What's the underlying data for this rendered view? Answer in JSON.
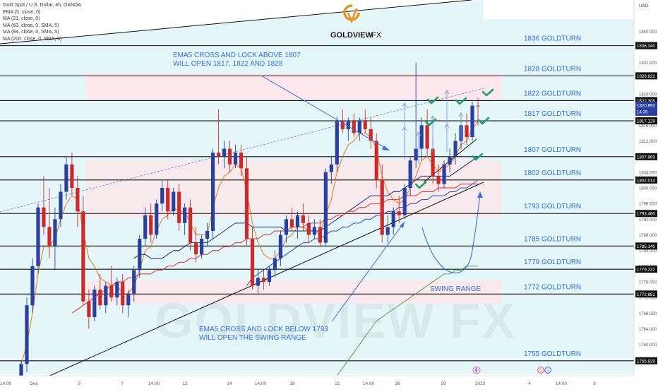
{
  "legend": {
    "symbol_title": "Gold Spot / U.S. Dollar, 4h, OANDA",
    "indicators": [
      "EMA (5, close, 0)",
      "MA (21, close, 0)",
      "MA (63, close, 0, SMA, 5)",
      "MA (84, close, 0, SMA, 5)",
      "MA (200, close, 0, SMA, 5)"
    ]
  },
  "brand": {
    "name": "GOLDVIEW",
    "suffix": "FX",
    "watermark": "GOLDVIEW FX"
  },
  "currency": "USD",
  "colors": {
    "up": "#2a3f9e",
    "down": "#cc2a2a",
    "ema5": "#e8761a",
    "ma21": "#1d2b6e",
    "ma63": "#d62f2f",
    "ma84": "#2b44c2",
    "ma200": "#4f9a3a",
    "label_blue": "#2e6fd6",
    "check_green": "#1e9e6a",
    "channel_fill": "#e3f6f8",
    "zone_fill": "#fde6ea",
    "brand_orange": "#e89420"
  },
  "annotations": {
    "top_note": [
      "EMA5 CROSS AND LOCK ABOVE 1807",
      "WILL OPEN 1817, 1822 AND 1828"
    ],
    "bottom_note": [
      "EMA5 CROSS AND LOCK BELOW 1793",
      "WILL OPEN THE SWING RANGE"
    ],
    "swing_range": "SWING RANGE"
  },
  "chart_data": {
    "type": "candlestick",
    "symbol": "Gold Spot / U.S. Dollar",
    "timeframe": "4h",
    "source": "OANDA",
    "ylim": [
      1752,
      1848
    ],
    "y_ticks": [
      1756,
      1760,
      1764,
      1768,
      1772,
      1776,
      1780,
      1784,
      1788,
      1792,
      1796,
      1800,
      1804,
      1808,
      1812,
      1816,
      1824,
      1832,
      1840
    ],
    "x_tick_labels": [
      "14:00",
      "Dec",
      "5",
      "7",
      "14:00",
      "12",
      "14",
      "14:00",
      "19",
      "21",
      "14:00",
      "26",
      "29",
      "2023",
      "4",
      "14:00",
      "9"
    ],
    "goldturn_levels": [
      {
        "label": "1836 GOLDTURN",
        "price": 1836.34
      },
      {
        "label": "1828 GOLDTURN",
        "price": 1828.622
      },
      {
        "label": "1822 GOLDTURN",
        "price": 1822.306
      },
      {
        "label": "1817 GOLDTURN",
        "price": 1817.129
      },
      {
        "label": "1807 GOLDTURN",
        "price": 1807.969
      },
      {
        "label": "1802 GOLDTURN",
        "price": 1802.014
      },
      {
        "label": "1793 GOLDTURN",
        "price": 1793.46
      },
      {
        "label": "1785 GOLDTURN",
        "price": 1785.14
      },
      {
        "label": "1779 GOLDTURN",
        "price": 1779.222
      },
      {
        "label": "1772 GOLDTURN",
        "price": 1772.881
      },
      {
        "label": "1755 GOLDTURN",
        "price": 1755.829
      }
    ],
    "axis_price_labels": [
      "1836.340",
      "1828.622",
      "1822.306",
      "1817.129",
      "1807.969",
      "1802.014",
      "1793.460",
      "1785.140",
      "1779.222",
      "1772.881",
      "1755.829"
    ],
    "current_price": {
      "price": 1820.95,
      "label": "1820.950",
      "countdown": "14:39"
    },
    "candles": [
      {
        "o": 1752,
        "h": 1756,
        "l": 1751,
        "c": 1755
      },
      {
        "o": 1755,
        "h": 1772,
        "l": 1753,
        "c": 1770
      },
      {
        "o": 1770,
        "h": 1782,
        "l": 1768,
        "c": 1780
      },
      {
        "o": 1780,
        "h": 1796,
        "l": 1778,
        "c": 1795
      },
      {
        "o": 1795,
        "h": 1803,
        "l": 1788,
        "c": 1790
      },
      {
        "o": 1790,
        "h": 1800,
        "l": 1782,
        "c": 1785
      },
      {
        "o": 1785,
        "h": 1795,
        "l": 1779,
        "c": 1792
      },
      {
        "o": 1792,
        "h": 1801,
        "l": 1790,
        "c": 1799
      },
      {
        "o": 1799,
        "h": 1808,
        "l": 1797,
        "c": 1806
      },
      {
        "o": 1806,
        "h": 1809,
        "l": 1798,
        "c": 1800
      },
      {
        "o": 1800,
        "h": 1803,
        "l": 1790,
        "c": 1794
      },
      {
        "o": 1794,
        "h": 1798,
        "l": 1770,
        "c": 1771
      },
      {
        "o": 1771,
        "h": 1774,
        "l": 1764,
        "c": 1767
      },
      {
        "o": 1767,
        "h": 1775,
        "l": 1766,
        "c": 1774
      },
      {
        "o": 1774,
        "h": 1778,
        "l": 1769,
        "c": 1770
      },
      {
        "o": 1770,
        "h": 1776,
        "l": 1768,
        "c": 1775
      },
      {
        "o": 1775,
        "h": 1780,
        "l": 1771,
        "c": 1772
      },
      {
        "o": 1772,
        "h": 1777,
        "l": 1770,
        "c": 1776
      },
      {
        "o": 1776,
        "h": 1778,
        "l": 1768,
        "c": 1770
      },
      {
        "o": 1770,
        "h": 1774,
        "l": 1767,
        "c": 1773
      },
      {
        "o": 1773,
        "h": 1780,
        "l": 1771,
        "c": 1779
      },
      {
        "o": 1779,
        "h": 1788,
        "l": 1777,
        "c": 1787
      },
      {
        "o": 1787,
        "h": 1795,
        "l": 1785,
        "c": 1793
      },
      {
        "o": 1793,
        "h": 1796,
        "l": 1786,
        "c": 1788
      },
      {
        "o": 1788,
        "h": 1797,
        "l": 1787,
        "c": 1796
      },
      {
        "o": 1796,
        "h": 1802,
        "l": 1794,
        "c": 1800
      },
      {
        "o": 1800,
        "h": 1802,
        "l": 1792,
        "c": 1794
      },
      {
        "o": 1794,
        "h": 1800,
        "l": 1793,
        "c": 1799
      },
      {
        "o": 1799,
        "h": 1801,
        "l": 1789,
        "c": 1791
      },
      {
        "o": 1791,
        "h": 1796,
        "l": 1788,
        "c": 1795
      },
      {
        "o": 1795,
        "h": 1797,
        "l": 1784,
        "c": 1786
      },
      {
        "o": 1786,
        "h": 1790,
        "l": 1781,
        "c": 1783
      },
      {
        "o": 1783,
        "h": 1788,
        "l": 1782,
        "c": 1787
      },
      {
        "o": 1787,
        "h": 1791,
        "l": 1785,
        "c": 1789
      },
      {
        "o": 1789,
        "h": 1810,
        "l": 1787,
        "c": 1809
      },
      {
        "o": 1809,
        "h": 1820,
        "l": 1806,
        "c": 1808
      },
      {
        "o": 1808,
        "h": 1812,
        "l": 1805,
        "c": 1810
      },
      {
        "o": 1810,
        "h": 1812,
        "l": 1804,
        "c": 1806
      },
      {
        "o": 1806,
        "h": 1811,
        "l": 1805,
        "c": 1809
      },
      {
        "o": 1809,
        "h": 1811,
        "l": 1803,
        "c": 1805
      },
      {
        "o": 1805,
        "h": 1808,
        "l": 1785,
        "c": 1787
      },
      {
        "o": 1787,
        "h": 1790,
        "l": 1774,
        "c": 1775
      },
      {
        "o": 1775,
        "h": 1779,
        "l": 1773,
        "c": 1777
      },
      {
        "o": 1777,
        "h": 1779,
        "l": 1774,
        "c": 1776
      },
      {
        "o": 1776,
        "h": 1780,
        "l": 1775,
        "c": 1779
      },
      {
        "o": 1779,
        "h": 1784,
        "l": 1777,
        "c": 1782
      },
      {
        "o": 1782,
        "h": 1789,
        "l": 1780,
        "c": 1788
      },
      {
        "o": 1788,
        "h": 1793,
        "l": 1786,
        "c": 1792
      },
      {
        "o": 1792,
        "h": 1795,
        "l": 1789,
        "c": 1790
      },
      {
        "o": 1790,
        "h": 1794,
        "l": 1787,
        "c": 1793
      },
      {
        "o": 1793,
        "h": 1796,
        "l": 1789,
        "c": 1791
      },
      {
        "o": 1791,
        "h": 1793,
        "l": 1786,
        "c": 1788
      },
      {
        "o": 1788,
        "h": 1792,
        "l": 1787,
        "c": 1790
      },
      {
        "o": 1790,
        "h": 1792,
        "l": 1785,
        "c": 1786
      },
      {
        "o": 1786,
        "h": 1805,
        "l": 1785,
        "c": 1804
      },
      {
        "o": 1804,
        "h": 1808,
        "l": 1801,
        "c": 1806
      },
      {
        "o": 1806,
        "h": 1818,
        "l": 1804,
        "c": 1817
      },
      {
        "o": 1817,
        "h": 1820,
        "l": 1814,
        "c": 1815
      },
      {
        "o": 1815,
        "h": 1818,
        "l": 1812,
        "c": 1817
      },
      {
        "o": 1817,
        "h": 1819,
        "l": 1813,
        "c": 1814
      },
      {
        "o": 1814,
        "h": 1818,
        "l": 1812,
        "c": 1817
      },
      {
        "o": 1817,
        "h": 1820,
        "l": 1814,
        "c": 1815
      },
      {
        "o": 1815,
        "h": 1818,
        "l": 1810,
        "c": 1812
      },
      {
        "o": 1812,
        "h": 1814,
        "l": 1800,
        "c": 1802
      },
      {
        "o": 1802,
        "h": 1806,
        "l": 1786,
        "c": 1788
      },
      {
        "o": 1788,
        "h": 1793,
        "l": 1786,
        "c": 1790
      },
      {
        "o": 1790,
        "h": 1795,
        "l": 1788,
        "c": 1794
      },
      {
        "o": 1794,
        "h": 1798,
        "l": 1791,
        "c": 1793
      },
      {
        "o": 1793,
        "h": 1801,
        "l": 1792,
        "c": 1800
      },
      {
        "o": 1800,
        "h": 1808,
        "l": 1798,
        "c": 1807
      },
      {
        "o": 1807,
        "h": 1832,
        "l": 1805,
        "c": 1810
      },
      {
        "o": 1810,
        "h": 1818,
        "l": 1807,
        "c": 1816
      },
      {
        "o": 1816,
        "h": 1820,
        "l": 1808,
        "c": 1810
      },
      {
        "o": 1810,
        "h": 1813,
        "l": 1801,
        "c": 1803
      },
      {
        "o": 1803,
        "h": 1806,
        "l": 1799,
        "c": 1801
      },
      {
        "o": 1801,
        "h": 1807,
        "l": 1800,
        "c": 1806
      },
      {
        "o": 1806,
        "h": 1810,
        "l": 1804,
        "c": 1808
      },
      {
        "o": 1808,
        "h": 1814,
        "l": 1806,
        "c": 1812
      },
      {
        "o": 1812,
        "h": 1818,
        "l": 1810,
        "c": 1816
      },
      {
        "o": 1816,
        "h": 1819,
        "l": 1811,
        "c": 1813
      },
      {
        "o": 1813,
        "h": 1822,
        "l": 1812,
        "c": 1821
      },
      {
        "o": 1821,
        "h": 1823,
        "l": 1816,
        "c": 1820.95
      }
    ],
    "series": [
      {
        "name": "EMA (5, close, 0)",
        "values": [
          1755,
          1760,
          1768,
          1778,
          1785,
          1785,
          1787,
          1792,
          1796,
          1798,
          1797,
          1789,
          1782,
          1780,
          1777,
          1776,
          1775,
          1775,
          1773,
          1773,
          1775,
          1779,
          1784,
          1785,
          1789,
          1792,
          1793,
          1795,
          1794,
          1794,
          1791,
          1788,
          1788,
          1788,
          1795,
          1800,
          1803,
          1804,
          1806,
          1805,
          1799,
          1791,
          1786,
          1783,
          1782,
          1782,
          1784,
          1787,
          1788,
          1790,
          1790,
          1789,
          1789,
          1788,
          1793,
          1797,
          1804,
          1808,
          1811,
          1812,
          1814,
          1814,
          1813,
          1810,
          1803,
          1799,
          1797,
          1796,
          1797,
          1800,
          1803,
          1807,
          1808,
          1806,
          1804,
          1805,
          1806,
          1808,
          1811,
          1812,
          1815,
          1817
        ]
      },
      {
        "name": "MA (21, close, 0)",
        "values": [
          null,
          null,
          null,
          null,
          null,
          null,
          null,
          null,
          null,
          null,
          null,
          null,
          null,
          null,
          null,
          null,
          null,
          null,
          null,
          null,
          1782,
          1783,
          1783,
          1782,
          1782,
          1782,
          1783,
          1784,
          1784,
          1785,
          1786,
          1786,
          1786,
          1786,
          1787,
          1788,
          1789,
          1790,
          1791,
          1791,
          1791,
          1790,
          1790,
          1790,
          1790,
          1790,
          1790,
          1789,
          1789,
          1789,
          1789,
          1789,
          1789,
          1789,
          1790,
          1791,
          1792,
          1793,
          1794,
          1795,
          1796,
          1797,
          1798,
          1798,
          1798,
          1798,
          1799,
          1799,
          1800,
          1801,
          1802,
          1803,
          1803,
          1803,
          1803,
          1803,
          1803,
          1804,
          1805,
          1806,
          1807,
          1808
        ]
      },
      {
        "name": "MA (63, close, 0, SMA, 5)",
        "values": [
          null,
          null,
          null,
          null,
          null,
          null,
          null,
          null,
          null,
          1768,
          1769,
          1770,
          1771,
          1772,
          1773,
          1774,
          1775,
          1776,
          1776,
          1777,
          1777,
          1778,
          1778,
          1778,
          1779,
          1779,
          1780,
          1780,
          1781,
          1781,
          1782,
          1782,
          1783,
          1783,
          1784,
          1784,
          1785,
          1785,
          1786,
          1786,
          1787,
          1787,
          1787,
          1788,
          1788,
          1789,
          1789,
          1789,
          1790,
          1790,
          1790,
          1791,
          1791,
          1791,
          1792,
          1792,
          1793,
          1793,
          1794,
          1794,
          1795,
          1795,
          1796,
          1796,
          1796,
          1797,
          1797,
          1797,
          1798,
          1798,
          1798,
          1799,
          1799,
          1799,
          1800,
          1800,
          1800,
          1800,
          1801,
          1801,
          1801,
          1802
        ]
      },
      {
        "name": "MA (84, close, 0, SMA, 5)",
        "values": [
          null,
          null,
          null,
          null,
          null,
          null,
          null,
          null,
          null,
          null,
          null,
          null,
          null,
          null,
          null,
          null,
          null,
          null,
          null,
          null,
          null,
          null,
          null,
          null,
          null,
          null,
          null,
          null,
          null,
          null,
          null,
          null,
          null,
          null,
          null,
          null,
          null,
          null,
          null,
          null,
          1775,
          1777,
          1778,
          1779,
          1780,
          1781,
          1782,
          1783,
          1784,
          1785,
          1786,
          1786,
          1787,
          1787,
          1788,
          1789,
          1789,
          1790,
          1790,
          1791,
          1791,
          1792,
          1792,
          1793,
          1793,
          1794,
          1794,
          1795,
          1795,
          1796,
          1796,
          1797,
          1797,
          1798,
          1798,
          1798,
          1799,
          1799,
          1800,
          1800,
          1801,
          1801
        ]
      },
      {
        "name": "MA (200, close, 0, SMA, 5)",
        "values": [
          null,
          null,
          null,
          null,
          null,
          null,
          null,
          null,
          null,
          null,
          null,
          null,
          null,
          null,
          null,
          null,
          null,
          null,
          null,
          null,
          null,
          null,
          null,
          null,
          null,
          null,
          null,
          null,
          null,
          null,
          null,
          null,
          null,
          null,
          null,
          null,
          null,
          null,
          null,
          null,
          null,
          null,
          null,
          null,
          null,
          null,
          null,
          null,
          null,
          null,
          null,
          null,
          null,
          null,
          null,
          null,
          1752,
          1754,
          1756,
          1758,
          1760,
          1762,
          1764,
          1766,
          1767,
          1768,
          1769,
          1770,
          1771,
          1772,
          1773,
          1774,
          1775,
          1776,
          1777,
          1778,
          1778,
          1779,
          1779,
          1780,
          1780,
          1780
        ]
      }
    ],
    "annotations": [
      "EMA5 CROSS AND LOCK ABOVE 1807 WILL OPEN 1817, 1822 AND 1828",
      "EMA5 CROSS AND LOCK BELOW 1793 WILL OPEN THE SWING RANGE",
      "SWING RANGE"
    ],
    "grid": false,
    "legend_position": "top-left"
  }
}
